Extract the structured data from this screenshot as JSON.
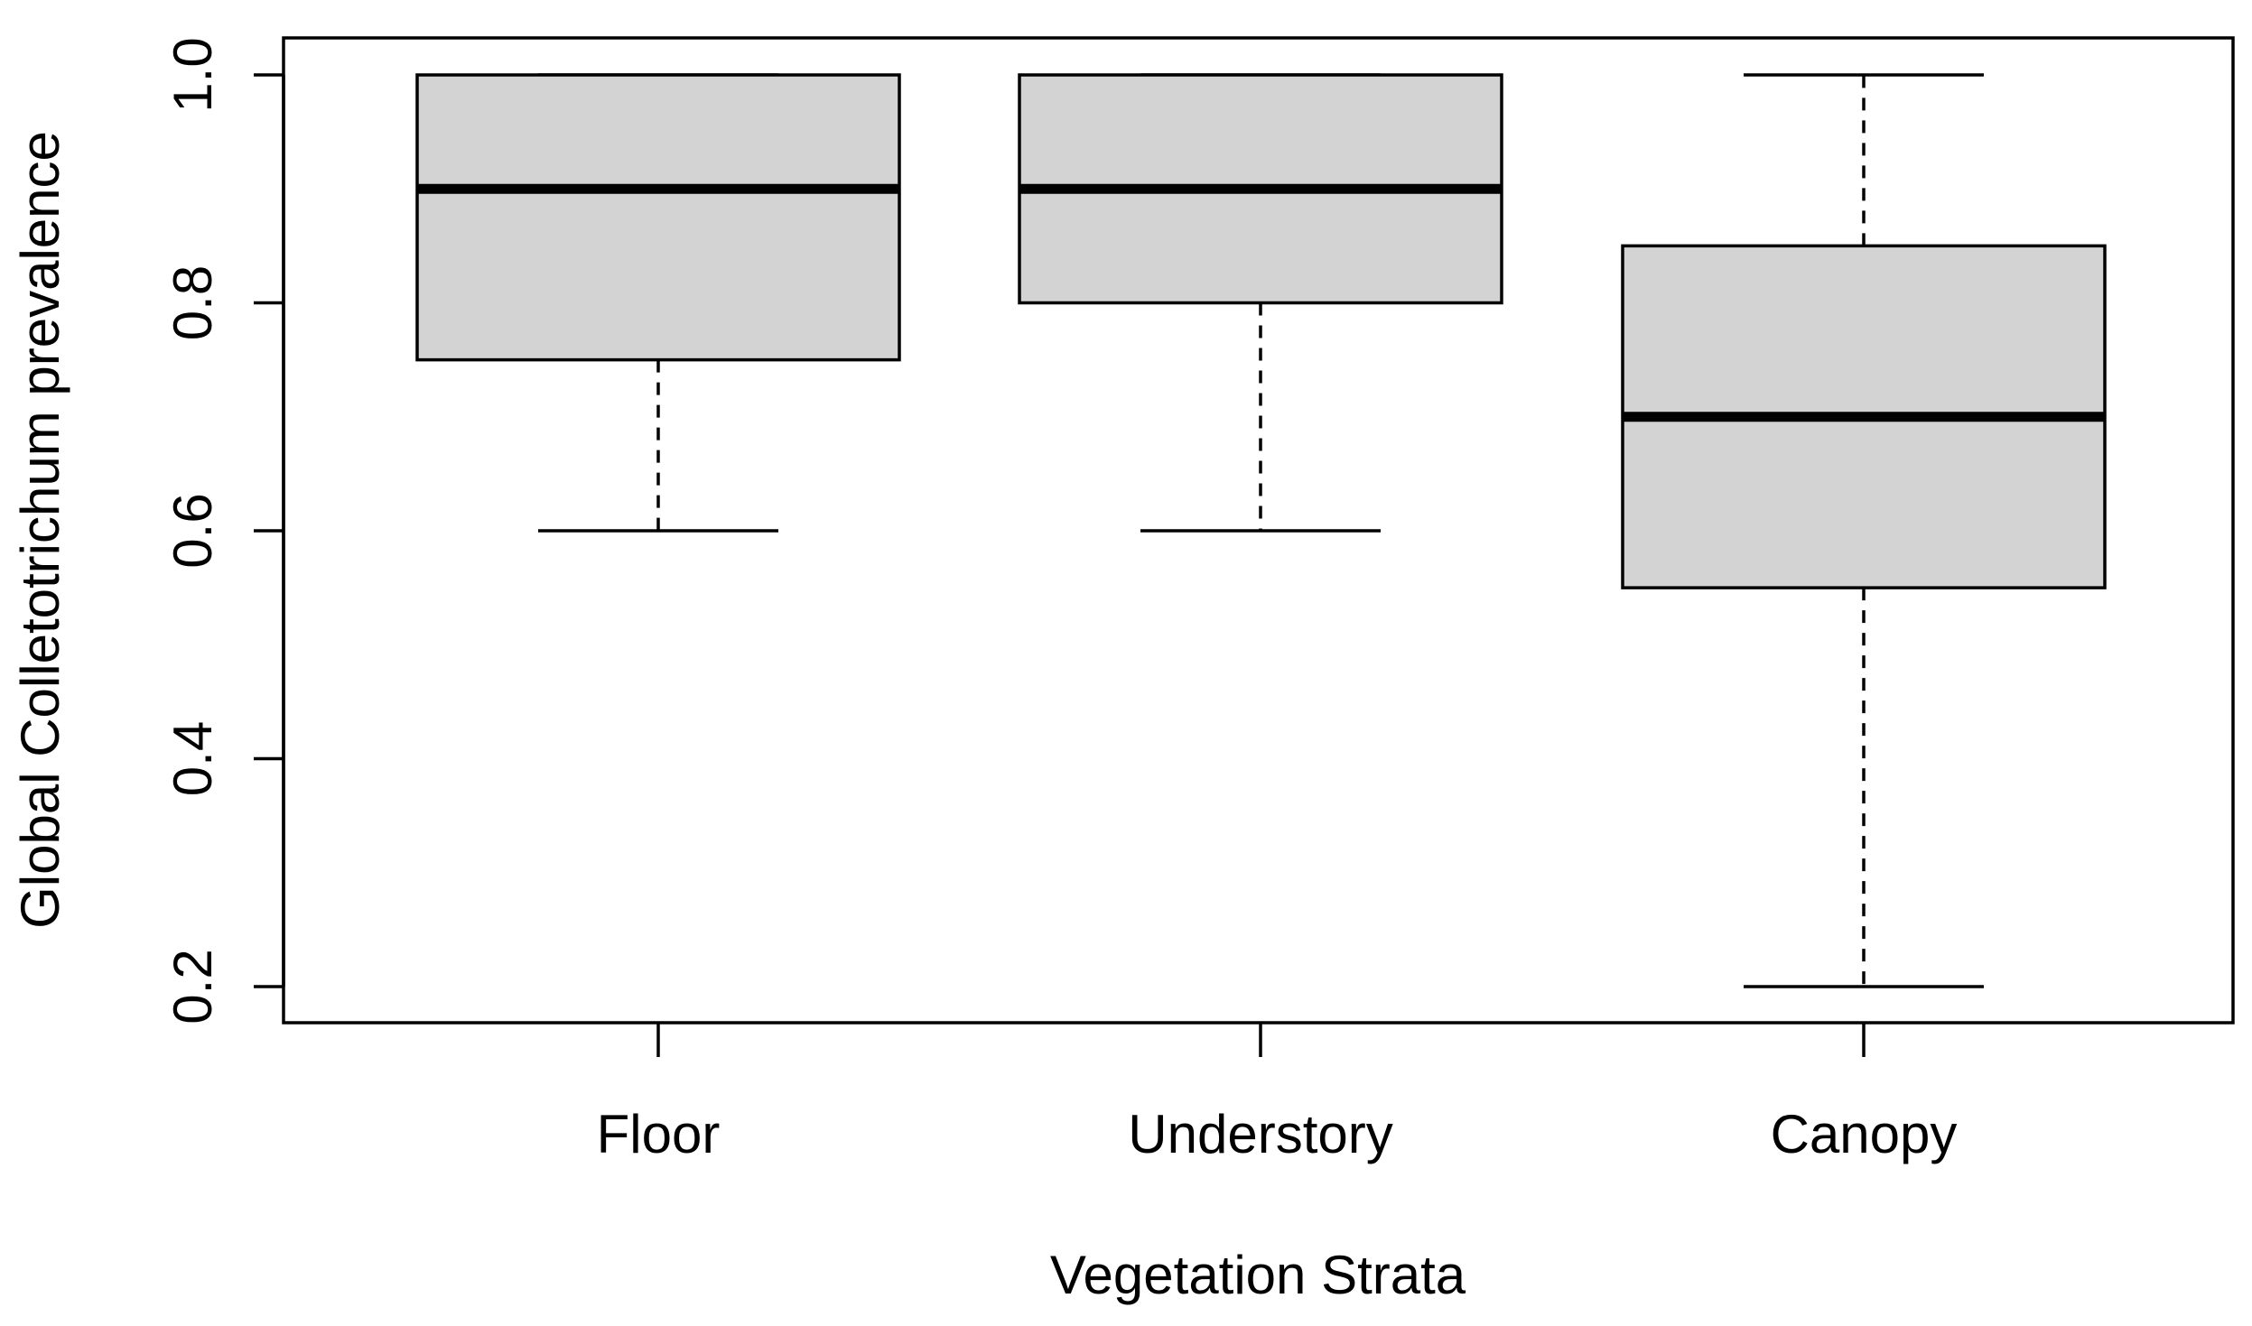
{
  "chart_data": {
    "type": "boxplot",
    "title": "",
    "xlabel": "Vegetation Strata",
    "ylabel": "Global Colletotrichum prevalence",
    "categories": [
      "Floor",
      "Understory",
      "Canopy"
    ],
    "ylim": [
      0.17,
      1.03
    ],
    "y_ticks": [
      0.2,
      0.4,
      0.6,
      0.8,
      1.0
    ],
    "y_tick_labels": [
      "0.2",
      "0.4",
      "0.6",
      "0.8",
      "1.0"
    ],
    "boxes": [
      {
        "name": "Floor",
        "min": 0.6,
        "q1": 0.75,
        "median": 0.9,
        "q3": 1.0,
        "max": 1.0
      },
      {
        "name": "Understory",
        "min": 0.6,
        "q1": 0.8,
        "median": 0.9,
        "q3": 1.0,
        "max": 1.0
      },
      {
        "name": "Canopy",
        "min": 0.2,
        "q1": 0.55,
        "median": 0.7,
        "q3": 0.85,
        "max": 1.0
      }
    ],
    "colors": {
      "box_fill": "#d3d3d3",
      "stroke": "#000000"
    },
    "grid": false,
    "legend": "none"
  }
}
